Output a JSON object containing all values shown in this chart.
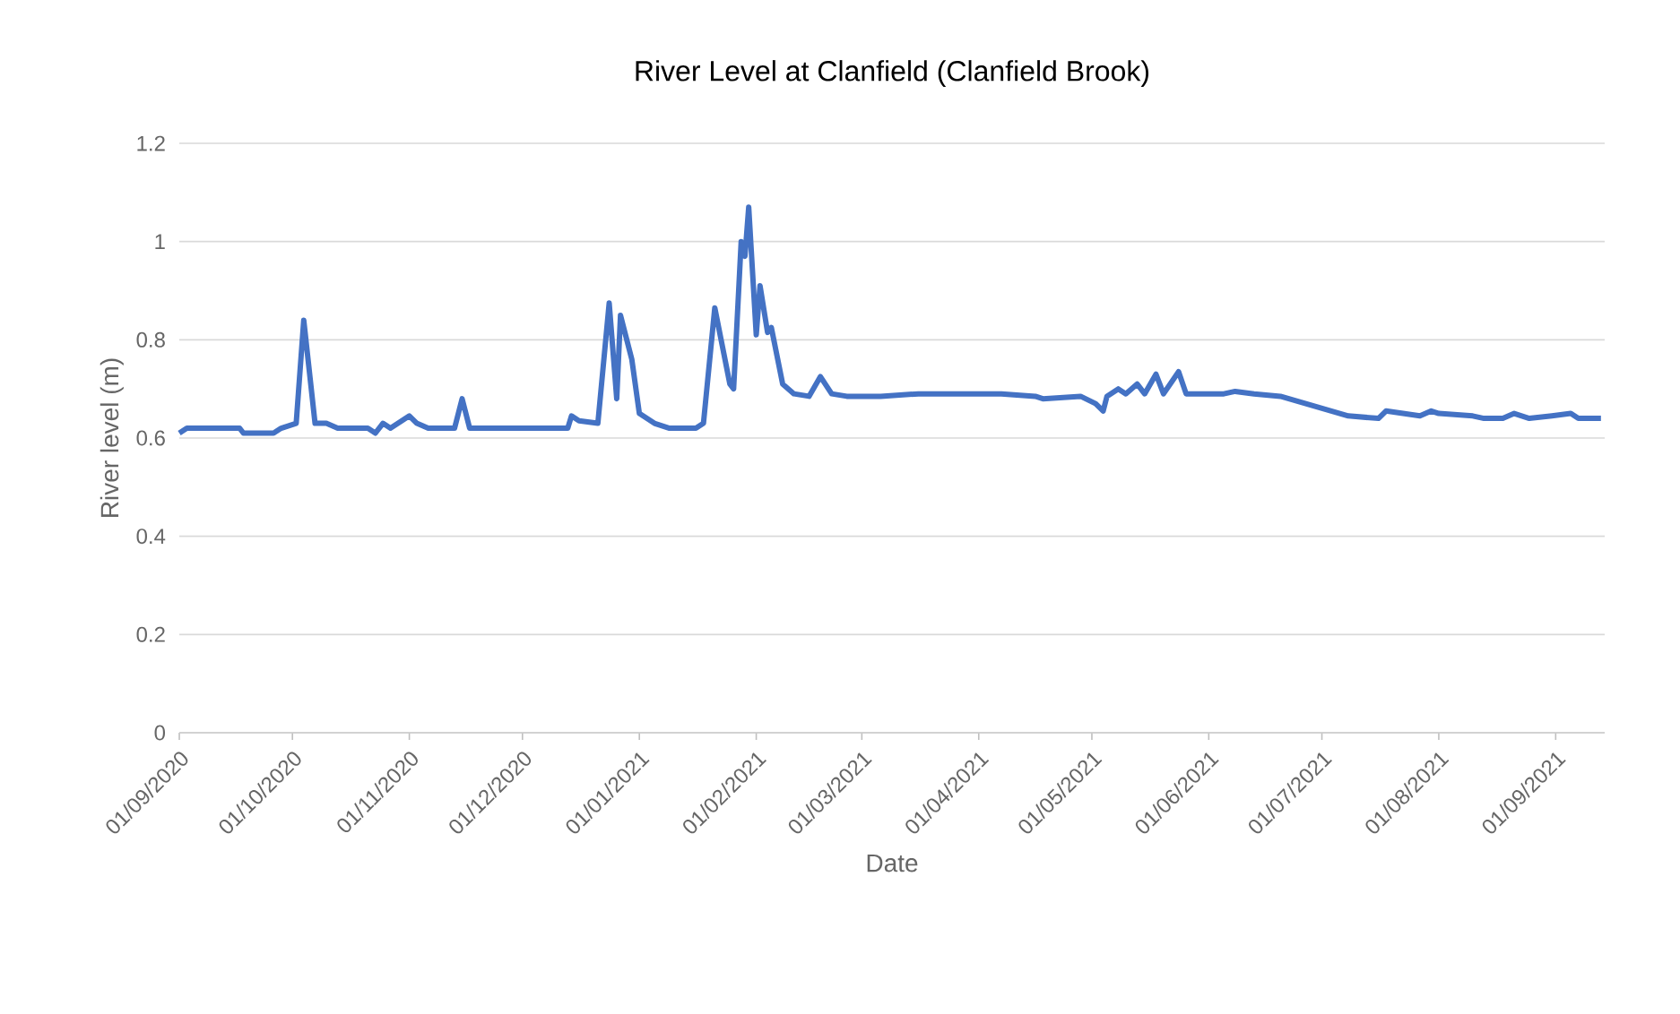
{
  "chart_data": {
    "type": "line",
    "title": "River Level at Clanfield (Clanfield Brook)",
    "xlabel": "Date",
    "ylabel": "River level (m)",
    "series": [
      {
        "color": "#4472c4",
        "x": [
          "2020-09-01",
          "2020-09-03",
          "2020-09-17",
          "2020-09-18",
          "2020-09-26",
          "2020-09-28",
          "2020-10-02",
          "2020-10-04",
          "2020-10-07",
          "2020-10-10",
          "2020-10-13",
          "2020-10-21",
          "2020-10-23",
          "2020-10-25",
          "2020-10-27",
          "2020-11-01",
          "2020-11-03",
          "2020-11-06",
          "2020-11-13",
          "2020-11-15",
          "2020-11-17",
          "2020-12-02",
          "2020-12-13",
          "2020-12-14",
          "2020-12-16",
          "2020-12-21",
          "2020-12-24",
          "2020-12-26",
          "2020-12-27",
          "2020-12-30",
          "2021-01-01",
          "2021-01-05",
          "2021-01-09",
          "2021-01-16",
          "2021-01-18",
          "2021-01-21",
          "2021-01-25",
          "2021-01-26",
          "2021-01-28",
          "2021-01-29",
          "2021-01-30",
          "2021-02-01",
          "2021-02-02",
          "2021-02-04",
          "2021-02-05",
          "2021-02-08",
          "2021-02-11",
          "2021-02-15",
          "2021-02-18",
          "2021-02-21",
          "2021-02-25",
          "2021-03-06",
          "2021-03-16",
          "2021-03-27",
          "2021-04-07",
          "2021-04-16",
          "2021-04-18",
          "2021-04-28",
          "2021-05-02",
          "2021-05-04",
          "2021-05-05",
          "2021-05-08",
          "2021-05-10",
          "2021-05-13",
          "2021-05-15",
          "2021-05-18",
          "2021-05-20",
          "2021-05-24",
          "2021-05-26",
          "2021-06-05",
          "2021-06-08",
          "2021-06-13",
          "2021-06-20",
          "2021-07-08",
          "2021-07-16",
          "2021-07-18",
          "2021-07-27",
          "2021-07-30",
          "2021-08-01",
          "2021-08-10",
          "2021-08-13",
          "2021-08-18",
          "2021-08-21",
          "2021-08-25",
          "2021-08-31",
          "2021-09-05",
          "2021-09-07",
          "2021-09-13"
        ],
        "values": [
          0.61,
          0.62,
          0.62,
          0.61,
          0.61,
          0.62,
          0.63,
          0.84,
          0.63,
          0.63,
          0.62,
          0.62,
          0.61,
          0.63,
          0.62,
          0.645,
          0.63,
          0.62,
          0.62,
          0.68,
          0.62,
          0.62,
          0.62,
          0.645,
          0.635,
          0.63,
          0.875,
          0.68,
          0.85,
          0.76,
          0.65,
          0.63,
          0.62,
          0.62,
          0.63,
          0.865,
          0.71,
          0.7,
          1.0,
          0.97,
          1.07,
          0.81,
          0.91,
          0.815,
          0.825,
          0.71,
          0.69,
          0.685,
          0.725,
          0.69,
          0.685,
          0.685,
          0.69,
          0.69,
          0.69,
          0.685,
          0.68,
          0.685,
          0.67,
          0.655,
          0.685,
          0.7,
          0.69,
          0.71,
          0.69,
          0.73,
          0.69,
          0.735,
          0.69,
          0.69,
          0.695,
          0.69,
          0.685,
          0.645,
          0.64,
          0.655,
          0.645,
          0.655,
          0.65,
          0.645,
          0.64,
          0.64,
          0.65,
          0.64,
          0.645,
          0.65,
          0.64,
          0.64
        ]
      }
    ],
    "xlim": [
      "2020-09-01",
      "2021-09-14"
    ],
    "xticks": [
      {
        "value": "2020-09-01",
        "label": "01/09/2020"
      },
      {
        "value": "2020-10-01",
        "label": "01/10/2020"
      },
      {
        "value": "2020-11-01",
        "label": "01/11/2020"
      },
      {
        "value": "2020-12-01",
        "label": "01/12/2020"
      },
      {
        "value": "2021-01-01",
        "label": "01/01/2021"
      },
      {
        "value": "2021-02-01",
        "label": "01/02/2021"
      },
      {
        "value": "2021-03-01",
        "label": "01/03/2021"
      },
      {
        "value": "2021-04-01",
        "label": "01/04/2021"
      },
      {
        "value": "2021-05-01",
        "label": "01/05/2021"
      },
      {
        "value": "2021-06-01",
        "label": "01/06/2021"
      },
      {
        "value": "2021-07-01",
        "label": "01/07/2021"
      },
      {
        "value": "2021-08-01",
        "label": "01/08/2021"
      },
      {
        "value": "2021-09-01",
        "label": "01/09/2021"
      }
    ],
    "ylim": [
      0,
      1.2
    ],
    "yticks": [
      0,
      0.2,
      0.4,
      0.6,
      0.8,
      1,
      1.2
    ],
    "grid": "y",
    "marker": "none",
    "line_style": "solid"
  }
}
